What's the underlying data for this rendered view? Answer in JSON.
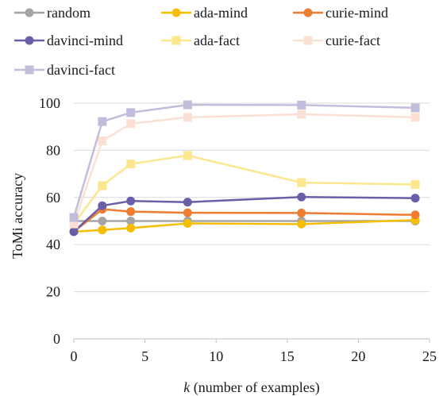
{
  "chart_data": {
    "type": "line",
    "title": "",
    "xlabel_var": "k",
    "xlabel_rest": " (number of examples)",
    "ylabel": "ToMi accuracy",
    "xlim": [
      0,
      25
    ],
    "ylim": [
      0,
      100
    ],
    "xticks": [
      0,
      5,
      10,
      15,
      20,
      25
    ],
    "yticks": [
      0,
      20,
      40,
      60,
      80,
      100
    ],
    "grid": "horizontal",
    "legend_position": "top",
    "x": [
      0,
      2,
      4,
      8,
      16,
      24
    ],
    "series": [
      {
        "name": "random",
        "color": "#a5a5a5",
        "marker": "circle",
        "values": [
          50,
          50,
          50,
          50,
          50,
          50
        ]
      },
      {
        "name": "ada-mind",
        "color": "#f5bf00",
        "marker": "circle",
        "values": [
          45.5,
          46.2,
          47,
          49,
          48.7,
          50.4
        ]
      },
      {
        "name": "curie-mind",
        "color": "#ed7d31",
        "marker": "circle",
        "values": [
          45.5,
          55,
          54,
          53.5,
          53.4,
          52.6
        ]
      },
      {
        "name": "davinci-mind",
        "color": "#6b5ea8",
        "marker": "circle",
        "values": [
          45.5,
          56.5,
          58.5,
          58,
          60.2,
          59.7
        ]
      },
      {
        "name": "ada-fact",
        "color": "#fce68e",
        "marker": "square",
        "values": [
          48.8,
          65,
          74.2,
          77.8,
          66.3,
          65.5
        ]
      },
      {
        "name": "curie-fact",
        "color": "#fbe0d4",
        "marker": "square",
        "values": [
          48.8,
          84,
          91.3,
          94,
          95.3,
          94
        ]
      },
      {
        "name": "davinci-fact",
        "color": "#c3bddc",
        "marker": "square",
        "values": [
          51.5,
          92.2,
          96,
          99.3,
          99.2,
          98
        ]
      }
    ]
  }
}
